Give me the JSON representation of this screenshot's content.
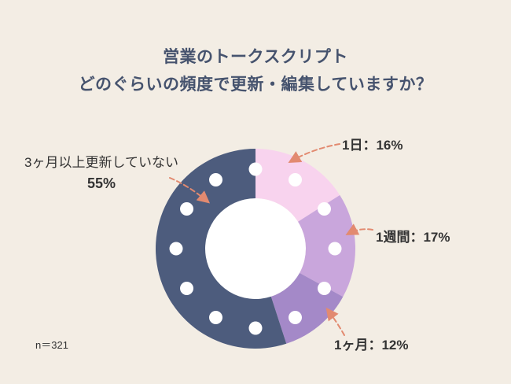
{
  "title": {
    "line1": "営業のトークスクリプト",
    "line2": "どのぐらいの頻度で更新・編集していますか？"
  },
  "footnote": "n＝321",
  "chart_data": {
    "type": "pie",
    "donut": true,
    "title": "営業のトークスクリプト どのぐらいの頻度で更新・編集していますか？",
    "sample_size_label": "n＝321",
    "sample_size": 321,
    "start_angle_deg": 0,
    "direction": "clockwise",
    "legend_position": "callouts",
    "segments": [
      {
        "label": "1日",
        "percent": 16,
        "color": "#f8d3ee"
      },
      {
        "label": "1週間",
        "percent": 17,
        "color": "#c9a6dc"
      },
      {
        "label": "1ヶ月",
        "percent": 12,
        "color": "#a489c8"
      },
      {
        "label": "3ヶ月以上更新していない",
        "percent": 55,
        "color": "#4d5c7d"
      }
    ]
  },
  "callouts": {
    "day": {
      "prefix": "1日：",
      "percent": "16%"
    },
    "week": {
      "prefix": "1週間：",
      "percent": "17%"
    },
    "month": {
      "prefix": "1ヶ月：",
      "percent": "12%"
    },
    "quarter": {
      "label": "3ヶ月以上更新していない",
      "percent": "55%"
    }
  },
  "style": {
    "page_bg": "#f3ede4",
    "title_color": "#46536e",
    "text_color": "#333333",
    "arrow_color": "#e28a70",
    "dot_color": "#ffffff",
    "hole_color": "#ffffff"
  }
}
